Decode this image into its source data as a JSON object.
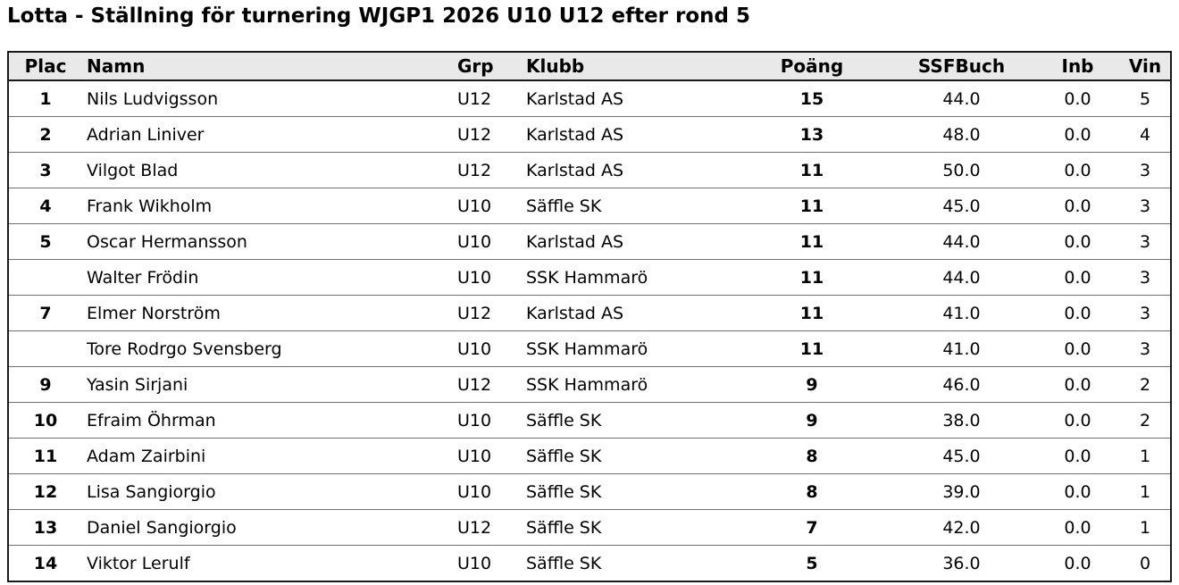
{
  "title": "Lotta - Ställning för turnering WJGP1 2026 U10 U12 efter rond 5",
  "colors": {
    "header_bg": "#e9e9e9",
    "outer_border": "#1a1a1a",
    "row_line": "#707070",
    "text": "#000000"
  },
  "table": {
    "columns": [
      {
        "key": "plac",
        "label": "Plac"
      },
      {
        "key": "namn",
        "label": "Namn"
      },
      {
        "key": "grp",
        "label": "Grp"
      },
      {
        "key": "klubb",
        "label": "Klubb"
      },
      {
        "key": "poang",
        "label": "Poäng"
      },
      {
        "key": "ssfbuch",
        "label": "SSFBuch"
      },
      {
        "key": "inb",
        "label": "Inb"
      },
      {
        "key": "vin",
        "label": "Vin"
      }
    ],
    "rows": [
      {
        "plac": "1",
        "namn": "Nils Ludvigsson",
        "grp": "U12",
        "klubb": "Karlstad AS",
        "poang": "15",
        "ssfbuch": "44.0",
        "inb": "0.0",
        "vin": "5"
      },
      {
        "plac": "2",
        "namn": "Adrian Liniver",
        "grp": "U12",
        "klubb": "Karlstad AS",
        "poang": "13",
        "ssfbuch": "48.0",
        "inb": "0.0",
        "vin": "4"
      },
      {
        "plac": "3",
        "namn": "Vilgot Blad",
        "grp": "U12",
        "klubb": "Karlstad AS",
        "poang": "11",
        "ssfbuch": "50.0",
        "inb": "0.0",
        "vin": "3"
      },
      {
        "plac": "4",
        "namn": "Frank Wikholm",
        "grp": "U10",
        "klubb": "Säffle SK",
        "poang": "11",
        "ssfbuch": "45.0",
        "inb": "0.0",
        "vin": "3"
      },
      {
        "plac": "5",
        "namn": "Oscar Hermansson",
        "grp": "U10",
        "klubb": "Karlstad AS",
        "poang": "11",
        "ssfbuch": "44.0",
        "inb": "0.0",
        "vin": "3"
      },
      {
        "plac": "",
        "namn": "Walter Frödin",
        "grp": "U10",
        "klubb": "SSK Hammarö",
        "poang": "11",
        "ssfbuch": "44.0",
        "inb": "0.0",
        "vin": "3"
      },
      {
        "plac": "7",
        "namn": "Elmer Norström",
        "grp": "U12",
        "klubb": "Karlstad AS",
        "poang": "11",
        "ssfbuch": "41.0",
        "inb": "0.0",
        "vin": "3"
      },
      {
        "plac": "",
        "namn": "Tore Rodrgo Svensberg",
        "grp": "U10",
        "klubb": "SSK Hammarö",
        "poang": "11",
        "ssfbuch": "41.0",
        "inb": "0.0",
        "vin": "3"
      },
      {
        "plac": "9",
        "namn": "Yasin Sirjani",
        "grp": "U12",
        "klubb": "SSK Hammarö",
        "poang": "9",
        "ssfbuch": "46.0",
        "inb": "0.0",
        "vin": "2"
      },
      {
        "plac": "10",
        "namn": "Efraim Öhrman",
        "grp": "U10",
        "klubb": "Säffle SK",
        "poang": "9",
        "ssfbuch": "38.0",
        "inb": "0.0",
        "vin": "2"
      },
      {
        "plac": "11",
        "namn": "Adam Zairbini",
        "grp": "U10",
        "klubb": "Säffle SK",
        "poang": "8",
        "ssfbuch": "45.0",
        "inb": "0.0",
        "vin": "1"
      },
      {
        "plac": "12",
        "namn": "Lisa Sangiorgio",
        "grp": "U10",
        "klubb": "Säffle SK",
        "poang": "8",
        "ssfbuch": "39.0",
        "inb": "0.0",
        "vin": "1"
      },
      {
        "plac": "13",
        "namn": "Daniel Sangiorgio",
        "grp": "U12",
        "klubb": "Säffle SK",
        "poang": "7",
        "ssfbuch": "42.0",
        "inb": "0.0",
        "vin": "1"
      },
      {
        "plac": "14",
        "namn": "Viktor Lerulf",
        "grp": "U10",
        "klubb": "Säffle SK",
        "poang": "5",
        "ssfbuch": "36.0",
        "inb": "0.0",
        "vin": "0"
      }
    ]
  }
}
